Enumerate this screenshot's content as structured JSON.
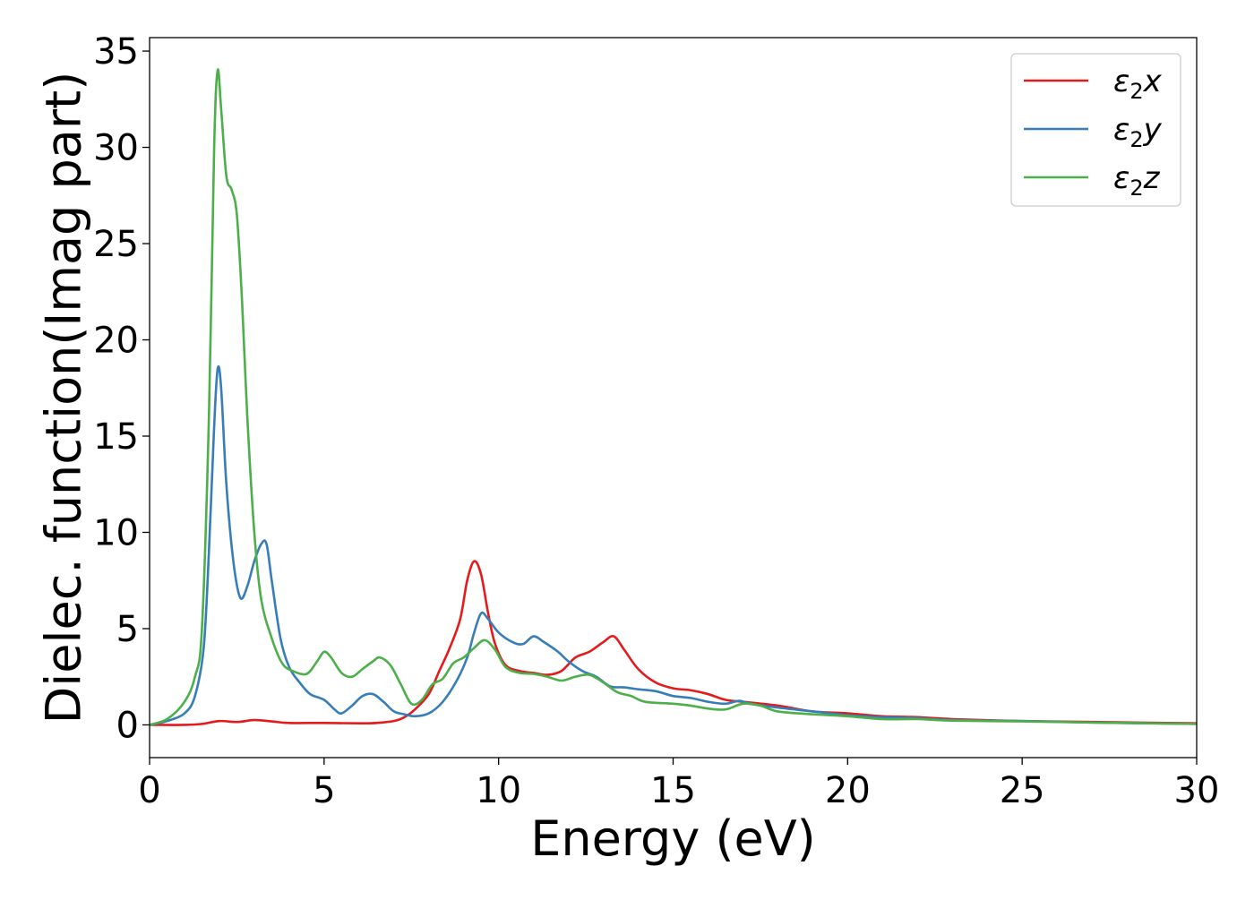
{
  "chart_data": {
    "type": "line",
    "title": "",
    "xlabel": "Energy (eV)",
    "ylabel": "Dielec. function(Imag part)",
    "xlim": [
      0,
      30
    ],
    "ylim": [
      -1.7,
      35.7
    ],
    "xticks": [
      0,
      5,
      10,
      15,
      20,
      25,
      30
    ],
    "yticks": [
      0,
      5,
      10,
      15,
      20,
      25,
      30,
      35
    ],
    "grid": false,
    "legend_position": "top-right",
    "series": [
      {
        "name": "ε₂x",
        "legend_base": "ε",
        "legend_sub": "2",
        "legend_suffix": "x",
        "color": "#e41a1c",
        "points": [
          [
            0,
            0
          ],
          [
            1,
            0
          ],
          [
            1.5,
            0.05
          ],
          [
            2,
            0.2
          ],
          [
            2.5,
            0.15
          ],
          [
            3,
            0.25
          ],
          [
            3.5,
            0.18
          ],
          [
            4,
            0.1
          ],
          [
            5,
            0.1
          ],
          [
            6,
            0.08
          ],
          [
            6.5,
            0.1
          ],
          [
            7,
            0.2
          ],
          [
            7.3,
            0.4
          ],
          [
            7.6,
            0.8
          ],
          [
            8,
            1.6
          ],
          [
            8.3,
            2.8
          ],
          [
            8.6,
            4
          ],
          [
            8.9,
            5.5
          ],
          [
            9.1,
            7.5
          ],
          [
            9.3,
            8.5
          ],
          [
            9.5,
            7.8
          ],
          [
            9.7,
            5.8
          ],
          [
            9.9,
            4.2
          ],
          [
            10.2,
            3.1
          ],
          [
            10.6,
            2.8
          ],
          [
            11,
            2.7
          ],
          [
            11.4,
            2.6
          ],
          [
            11.8,
            2.8
          ],
          [
            12.2,
            3.5
          ],
          [
            12.6,
            3.8
          ],
          [
            13,
            4.3
          ],
          [
            13.3,
            4.6
          ],
          [
            13.6,
            3.9
          ],
          [
            14,
            2.9
          ],
          [
            14.5,
            2.2
          ],
          [
            15,
            1.9
          ],
          [
            15.5,
            1.8
          ],
          [
            16,
            1.6
          ],
          [
            16.5,
            1.3
          ],
          [
            17,
            1.2
          ],
          [
            18,
            1
          ],
          [
            19,
            0.7
          ],
          [
            20,
            0.6
          ],
          [
            21,
            0.45
          ],
          [
            22,
            0.4
          ],
          [
            23,
            0.3
          ],
          [
            25,
            0.2
          ],
          [
            27,
            0.15
          ],
          [
            30,
            0.08
          ]
        ]
      },
      {
        "name": "ε₂y",
        "legend_base": "ε",
        "legend_sub": "2",
        "legend_suffix": "y",
        "color": "#377eb8",
        "points": [
          [
            0,
            0
          ],
          [
            0.5,
            0.2
          ],
          [
            1,
            0.6
          ],
          [
            1.3,
            1.5
          ],
          [
            1.55,
            4
          ],
          [
            1.7,
            9
          ],
          [
            1.85,
            15.5
          ],
          [
            1.95,
            18.5
          ],
          [
            2.05,
            17.5
          ],
          [
            2.2,
            12.5
          ],
          [
            2.4,
            8.5
          ],
          [
            2.6,
            6.6
          ],
          [
            2.8,
            7.2
          ],
          [
            3,
            8.5
          ],
          [
            3.2,
            9.4
          ],
          [
            3.35,
            9.4
          ],
          [
            3.5,
            7.5
          ],
          [
            3.75,
            4.5
          ],
          [
            4,
            3
          ],
          [
            4.3,
            2.2
          ],
          [
            4.6,
            1.6
          ],
          [
            5,
            1.3
          ],
          [
            5.3,
            0.8
          ],
          [
            5.5,
            0.6
          ],
          [
            5.8,
            1
          ],
          [
            6.1,
            1.5
          ],
          [
            6.4,
            1.6
          ],
          [
            6.7,
            1.2
          ],
          [
            7,
            0.7
          ],
          [
            7.3,
            0.55
          ],
          [
            7.6,
            0.45
          ],
          [
            8,
            0.6
          ],
          [
            8.4,
            1.2
          ],
          [
            8.8,
            2.3
          ],
          [
            9.1,
            3.5
          ],
          [
            9.3,
            4.8
          ],
          [
            9.5,
            5.8
          ],
          [
            9.7,
            5.5
          ],
          [
            10,
            4.8
          ],
          [
            10.4,
            4.3
          ],
          [
            10.7,
            4.2
          ],
          [
            11,
            4.6
          ],
          [
            11.3,
            4.3
          ],
          [
            11.7,
            3.8
          ],
          [
            12,
            3.3
          ],
          [
            12.4,
            2.8
          ],
          [
            12.8,
            2.5
          ],
          [
            13.2,
            2
          ],
          [
            13.6,
            1.95
          ],
          [
            14,
            1.85
          ],
          [
            14.5,
            1.75
          ],
          [
            15,
            1.5
          ],
          [
            15.5,
            1.4
          ],
          [
            16,
            1.2
          ],
          [
            16.5,
            1.1
          ],
          [
            16.9,
            1.25
          ],
          [
            17.2,
            1.1
          ],
          [
            18,
            0.9
          ],
          [
            19,
            0.7
          ],
          [
            20,
            0.5
          ],
          [
            21,
            0.4
          ],
          [
            22,
            0.35
          ],
          [
            23,
            0.25
          ],
          [
            25,
            0.2
          ],
          [
            27,
            0.12
          ],
          [
            30,
            0.05
          ]
        ]
      },
      {
        "name": "ε₂z",
        "legend_base": "ε",
        "legend_sub": "2",
        "legend_suffix": "z",
        "color": "#4daf4a",
        "points": [
          [
            0,
            0
          ],
          [
            0.5,
            0.3
          ],
          [
            1,
            1.2
          ],
          [
            1.3,
            2.5
          ],
          [
            1.5,
            5
          ],
          [
            1.7,
            16
          ],
          [
            1.85,
            30
          ],
          [
            1.95,
            34
          ],
          [
            2.05,
            32
          ],
          [
            2.2,
            28.5
          ],
          [
            2.35,
            27.8
          ],
          [
            2.5,
            26.5
          ],
          [
            2.65,
            22
          ],
          [
            2.8,
            16
          ],
          [
            3,
            10
          ],
          [
            3.2,
            6.5
          ],
          [
            3.5,
            4.5
          ],
          [
            3.8,
            3.2
          ],
          [
            4.1,
            2.8
          ],
          [
            4.5,
            2.65
          ],
          [
            4.8,
            3.3
          ],
          [
            5,
            3.8
          ],
          [
            5.2,
            3.5
          ],
          [
            5.5,
            2.7
          ],
          [
            5.8,
            2.5
          ],
          [
            6.1,
            2.9
          ],
          [
            6.4,
            3.3
          ],
          [
            6.6,
            3.5
          ],
          [
            6.9,
            3.1
          ],
          [
            7.2,
            2.1
          ],
          [
            7.5,
            1.1
          ],
          [
            7.8,
            1.3
          ],
          [
            8.1,
            2.1
          ],
          [
            8.4,
            2.4
          ],
          [
            8.7,
            3.2
          ],
          [
            9,
            3.5
          ],
          [
            9.3,
            4
          ],
          [
            9.6,
            4.4
          ],
          [
            9.9,
            3.9
          ],
          [
            10.2,
            3
          ],
          [
            10.6,
            2.7
          ],
          [
            11,
            2.65
          ],
          [
            11.4,
            2.5
          ],
          [
            11.8,
            2.3
          ],
          [
            12.2,
            2.5
          ],
          [
            12.6,
            2.6
          ],
          [
            13,
            2.2
          ],
          [
            13.4,
            1.7
          ],
          [
            13.8,
            1.5
          ],
          [
            14.2,
            1.2
          ],
          [
            15,
            1.1
          ],
          [
            15.5,
            1
          ],
          [
            16,
            0.85
          ],
          [
            16.5,
            0.8
          ],
          [
            17,
            1.1
          ],
          [
            17.5,
            1
          ],
          [
            18,
            0.7
          ],
          [
            19,
            0.55
          ],
          [
            20,
            0.45
          ],
          [
            21,
            0.3
          ],
          [
            22,
            0.3
          ],
          [
            23,
            0.22
          ],
          [
            25,
            0.18
          ],
          [
            27,
            0.12
          ],
          [
            30,
            0.05
          ]
        ]
      }
    ]
  }
}
